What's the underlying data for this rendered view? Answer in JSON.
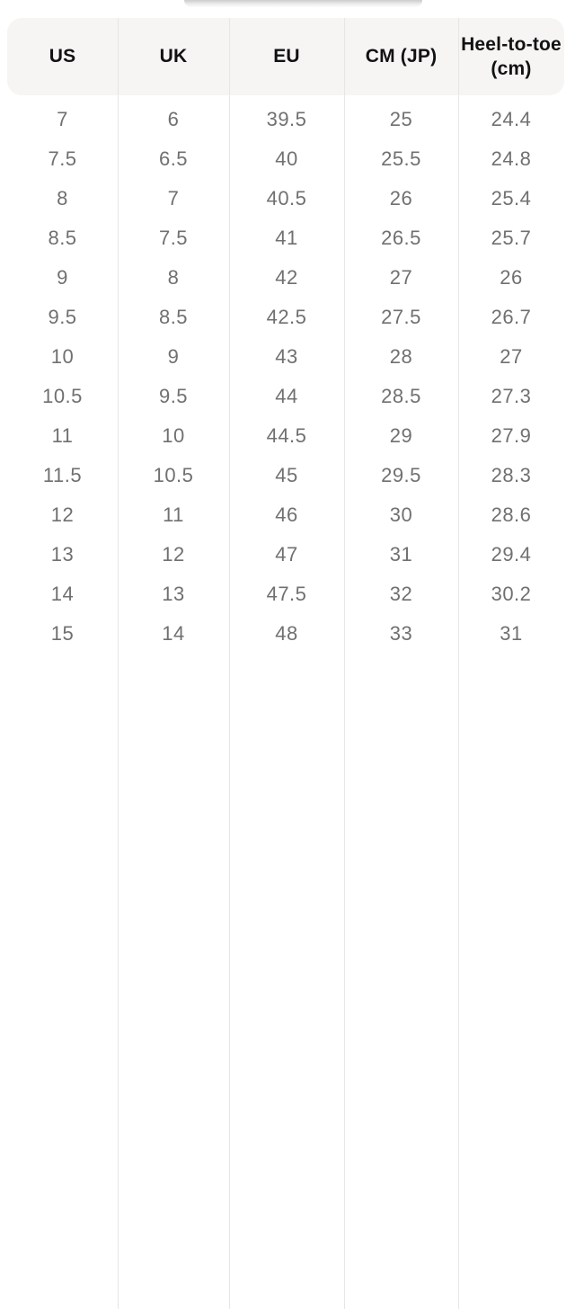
{
  "top_cutoff": {
    "description": "bottom sliver of element scrolled out of view"
  },
  "size_chart": {
    "columns": [
      "US",
      "UK",
      "EU",
      "CM (JP)",
      "Heel-to-toe\n(cm)"
    ],
    "rows": [
      [
        "7",
        "6",
        "39.5",
        "25",
        "24.4"
      ],
      [
        "7.5",
        "6.5",
        "40",
        "25.5",
        "24.8"
      ],
      [
        "8",
        "7",
        "40.5",
        "26",
        "25.4"
      ],
      [
        "8.5",
        "7.5",
        "41",
        "26.5",
        "25.7"
      ],
      [
        "9",
        "8",
        "42",
        "27",
        "26"
      ],
      [
        "9.5",
        "8.5",
        "42.5",
        "27.5",
        "26.7"
      ],
      [
        "10",
        "9",
        "43",
        "28",
        "27"
      ],
      [
        "10.5",
        "9.5",
        "44",
        "28.5",
        "27.3"
      ],
      [
        "11",
        "10",
        "44.5",
        "29",
        "27.9"
      ],
      [
        "11.5",
        "10.5",
        "45",
        "29.5",
        "28.3"
      ],
      [
        "12",
        "11",
        "46",
        "30",
        "28.6"
      ],
      [
        "13",
        "12",
        "47",
        "31",
        "29.4"
      ],
      [
        "14",
        "13",
        "47.5",
        "32",
        "30.2"
      ],
      [
        "15",
        "14",
        "48",
        "33",
        "31"
      ]
    ]
  },
  "colors": {
    "background": "#ffffff",
    "header_bg": "#f6f5f4",
    "header_text": "#121212",
    "cell_text": "#707070",
    "divider": "#e7e6e5"
  }
}
